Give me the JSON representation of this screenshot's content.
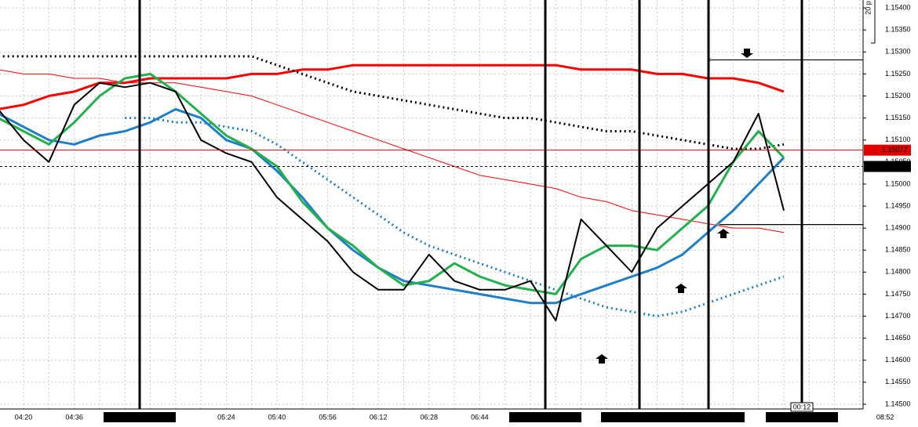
{
  "chart_data": {
    "type": "line",
    "categories": [
      null,
      "04:20",
      null,
      "04:36",
      null,
      null,
      null,
      null,
      null,
      "05:24",
      null,
      "05:40",
      null,
      "05:56",
      null,
      "06:12",
      null,
      "06:28",
      null,
      "06:44",
      null,
      null,
      null,
      null,
      null,
      null,
      null,
      null,
      null,
      null,
      null,
      null,
      null,
      null,
      null,
      "08:52"
    ],
    "ylim": [
      1.14475,
      1.15418
    ],
    "yticks": [
      {
        "value": 1.145,
        "label": "1.14500"
      },
      {
        "value": 1.1455,
        "label": "1.14550"
      },
      {
        "value": 1.146,
        "label": "1.14600"
      },
      {
        "value": 1.1465,
        "label": "1.14650"
      },
      {
        "value": 1.147,
        "label": "1.14700"
      },
      {
        "value": 1.1475,
        "label": "1.14750"
      },
      {
        "value": 1.148,
        "label": "1.14800"
      },
      {
        "value": 1.1485,
        "label": "1.14850"
      },
      {
        "value": 1.149,
        "label": "1.14900"
      },
      {
        "value": 1.1495,
        "label": "1.14950"
      },
      {
        "value": 1.15,
        "label": "1.15000"
      },
      {
        "value": 1.1505,
        "label": "1.15050"
      },
      {
        "value": 1.151,
        "label": "1.15100"
      },
      {
        "value": 1.1515,
        "label": "1.15150"
      },
      {
        "value": 1.152,
        "label": "1.15200"
      },
      {
        "value": 1.1525,
        "label": "1.15250"
      },
      {
        "value": 1.153,
        "label": "1.15300"
      },
      {
        "value": 1.1535,
        "label": "1.15350"
      },
      {
        "value": 1.154,
        "label": "1.15400"
      }
    ],
    "grid": true,
    "series": [
      {
        "color": "#ff0000",
        "style": "solid",
        "values": [
          1.1517,
          1.1518,
          1.152,
          1.1521,
          1.1523,
          1.1523,
          1.1524,
          1.1524,
          1.1524,
          1.1524,
          1.1525,
          1.1525,
          1.1526,
          1.1526,
          1.1527,
          1.1527,
          1.1527,
          1.1527,
          1.1527,
          1.1527,
          1.1527,
          1.1527,
          1.1527,
          1.1526,
          1.1526,
          1.1526,
          1.1525,
          1.1525,
          1.1524,
          1.1524,
          1.1523,
          1.1521,
          null,
          null,
          null,
          null
        ]
      },
      {
        "color": "#000000",
        "style": "dotted",
        "values": [
          1.1529,
          1.1529,
          1.1529,
          1.1529,
          1.1529,
          1.1529,
          1.1529,
          1.1529,
          1.1529,
          1.1529,
          1.1529,
          1.1527,
          1.1525,
          1.1523,
          1.1521,
          1.152,
          1.1519,
          1.1518,
          1.1517,
          1.1516,
          1.1515,
          1.1515,
          1.1514,
          1.1513,
          1.1512,
          1.1512,
          1.1511,
          1.151,
          1.1509,
          1.1508,
          1.1508,
          1.1509,
          null,
          null,
          null,
          null
        ]
      },
      {
        "color": "#ff0000",
        "style": "thin",
        "values": [
          1.1526,
          1.1525,
          1.1525,
          1.1524,
          1.1524,
          1.1523,
          1.1523,
          1.1523,
          1.1522,
          1.1521,
          1.152,
          1.1518,
          1.1516,
          1.1514,
          1.1512,
          1.151,
          1.1508,
          1.1506,
          1.1504,
          1.1502,
          1.1501,
          1.15,
          1.1499,
          1.1497,
          1.1496,
          1.1494,
          1.1493,
          1.1492,
          1.1491,
          1.149,
          1.149,
          1.1489,
          null,
          null,
          null,
          null
        ]
      },
      {
        "color": "#1e7fc8",
        "style": "dotted",
        "values": [
          null,
          null,
          null,
          null,
          null,
          1.1515,
          1.1515,
          1.1514,
          1.1514,
          1.1513,
          1.1512,
          1.1509,
          1.1505,
          1.1501,
          1.1497,
          1.1493,
          1.1489,
          1.1486,
          1.1484,
          1.1482,
          1.148,
          1.1478,
          1.1476,
          1.1474,
          1.1472,
          1.1471,
          1.147,
          1.1471,
          1.1473,
          1.1475,
          1.1477,
          1.1479,
          null,
          null,
          null,
          null
        ]
      },
      {
        "color": "#1e7fc8",
        "style": "solid",
        "values": [
          1.1516,
          1.1513,
          1.151,
          1.1509,
          1.1511,
          1.1512,
          1.1514,
          1.1517,
          1.1515,
          1.151,
          1.1508,
          1.1503,
          1.1497,
          1.149,
          1.1485,
          1.1481,
          1.1478,
          1.1477,
          1.1476,
          1.1475,
          1.1474,
          1.1473,
          1.1473,
          1.1475,
          1.1477,
          1.1479,
          1.1481,
          1.1484,
          1.1489,
          1.1494,
          1.15,
          1.1506,
          null,
          null,
          null,
          null
        ]
      },
      {
        "color": "#22b14c",
        "style": "solid",
        "values": [
          1.1515,
          1.1512,
          1.1509,
          1.1514,
          1.152,
          1.1524,
          1.1525,
          1.1521,
          1.1516,
          1.1511,
          1.1508,
          1.1504,
          1.1496,
          1.149,
          1.1486,
          1.1481,
          1.1477,
          1.1478,
          1.1482,
          1.1479,
          1.1477,
          1.1476,
          1.1475,
          1.1483,
          1.1486,
          1.1486,
          1.1485,
          1.149,
          1.1495,
          1.1505,
          1.1512,
          1.1506,
          null,
          null,
          null,
          null
        ]
      },
      {
        "color": "#000000",
        "style": "price",
        "values": [
          1.1517,
          1.151,
          1.1505,
          1.1518,
          1.1523,
          1.1522,
          1.1523,
          1.1521,
          1.151,
          1.1507,
          1.1505,
          1.1497,
          1.1492,
          1.1487,
          1.148,
          1.1476,
          1.1476,
          1.1484,
          1.1478,
          1.1476,
          1.1476,
          1.1478,
          1.1469,
          1.1492,
          1.1486,
          1.148,
          1.149,
          1.1495,
          1.15,
          1.1505,
          1.1516,
          1.1494,
          null,
          null,
          null,
          null
        ]
      }
    ],
    "price_lines": [
      {
        "value": 1.15077,
        "label": "1.15077",
        "color": "#e00000"
      },
      {
        "value": 1.1504,
        "label": "1.15040",
        "color": "#000000"
      }
    ],
    "trend_lines": [
      1.15282,
      1.14908
    ],
    "events": [
      "26/08/2015 05:00",
      "26/08/2015 07:09",
      "26/08/2015 07:39",
      "26/08/2015 08:01",
      "26/08/2015 08:31"
    ],
    "countdown": "00:12",
    "scale_note": "20 p"
  }
}
